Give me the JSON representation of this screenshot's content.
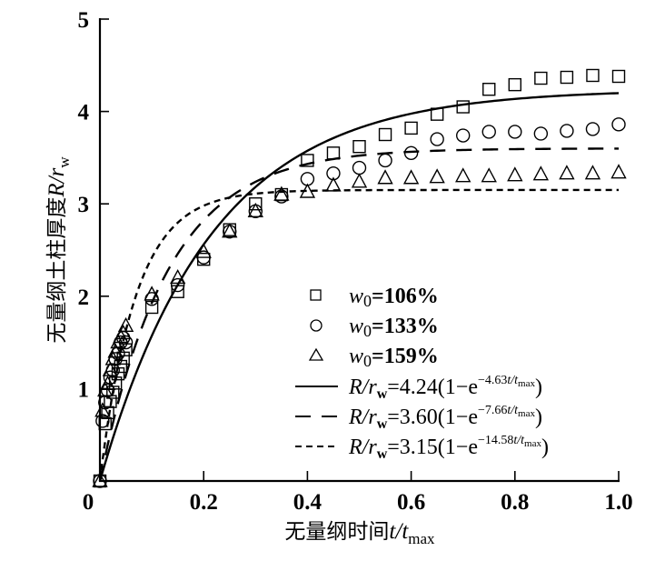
{
  "chart_data": {
    "type": "scatter",
    "title": "",
    "xlabel": {
      "prefix": "无量纲时间",
      "var": "t",
      "slash": "/",
      "var2": "t",
      "sub": "max"
    },
    "ylabel": {
      "prefix": "无量纲土柱厚度",
      "var": "R",
      "slash": "/",
      "var2": "r",
      "sub": "w"
    },
    "xlim": [
      0,
      1.0
    ],
    "ylim": [
      0,
      5
    ],
    "grid": false,
    "legend_position": "center-right",
    "x_ticks": [
      0,
      0.2,
      0.4,
      0.6,
      0.8,
      1.0
    ],
    "x_tick_labels": [
      "0",
      "0.2",
      "0.4",
      "0.6",
      "0.8",
      "1.0"
    ],
    "y_ticks": [
      1,
      2,
      3,
      4,
      5
    ],
    "y_tick_labels": [
      "1",
      "2",
      "3",
      "4",
      "5"
    ],
    "series": [
      {
        "name": "w0=106%",
        "legend": {
          "var": "w",
          "sub": "0",
          "text": "=106%"
        },
        "marker": "square",
        "x": [
          0.0,
          0.01,
          0.015,
          0.02,
          0.025,
          0.03,
          0.035,
          0.04,
          0.045,
          0.05,
          0.1,
          0.15,
          0.2,
          0.25,
          0.3,
          0.35,
          0.4,
          0.45,
          0.5,
          0.55,
          0.6,
          0.65,
          0.7,
          0.75,
          0.8,
          0.85,
          0.9,
          0.95,
          1.0
        ],
        "y": [
          0.0,
          0.62,
          0.74,
          0.86,
          0.96,
          1.06,
          1.16,
          1.24,
          1.33,
          1.42,
          1.88,
          2.05,
          2.4,
          2.72,
          3.0,
          3.1,
          3.47,
          3.55,
          3.62,
          3.75,
          3.82,
          3.97,
          4.05,
          4.24,
          4.29,
          4.36,
          4.37,
          4.39,
          4.38
        ]
      },
      {
        "name": "w0=133%",
        "legend": {
          "var": "w",
          "sub": "0",
          "text": "=133%"
        },
        "marker": "circle",
        "x": [
          0.0,
          0.005,
          0.01,
          0.015,
          0.02,
          0.025,
          0.03,
          0.035,
          0.04,
          0.045,
          0.05,
          0.1,
          0.15,
          0.2,
          0.25,
          0.3,
          0.35,
          0.4,
          0.45,
          0.5,
          0.55,
          0.6,
          0.65,
          0.7,
          0.75,
          0.8,
          0.85,
          0.9,
          0.95,
          1.0
        ],
        "y": [
          0.0,
          0.65,
          0.85,
          0.98,
          1.12,
          1.2,
          1.32,
          1.38,
          1.5,
          1.55,
          1.5,
          1.97,
          2.12,
          2.42,
          2.7,
          2.92,
          3.08,
          3.27,
          3.33,
          3.39,
          3.47,
          3.55,
          3.7,
          3.74,
          3.78,
          3.78,
          3.76,
          3.79,
          3.81,
          3.86
        ]
      },
      {
        "name": "w0=159%",
        "legend": {
          "var": "w",
          "sub": "0",
          "text": "=159%"
        },
        "marker": "triangle",
        "x": [
          0.0,
          0.005,
          0.01,
          0.015,
          0.02,
          0.025,
          0.03,
          0.035,
          0.04,
          0.045,
          0.05,
          0.1,
          0.15,
          0.2,
          0.25,
          0.3,
          0.35,
          0.4,
          0.45,
          0.5,
          0.55,
          0.6,
          0.65,
          0.7,
          0.75,
          0.8,
          0.85,
          0.9,
          0.95,
          1.0
        ],
        "y": [
          0.0,
          0.76,
          0.98,
          1.05,
          1.2,
          1.32,
          1.4,
          1.5,
          1.56,
          1.6,
          1.68,
          2.02,
          2.2,
          2.48,
          2.7,
          2.92,
          3.1,
          3.13,
          3.2,
          3.24,
          3.28,
          3.28,
          3.29,
          3.3,
          3.3,
          3.31,
          3.32,
          3.33,
          3.33,
          3.34
        ]
      }
    ],
    "fits": [
      {
        "name": "fit-106",
        "style": "solid",
        "a": 4.24,
        "k": 4.63,
        "legend": {
          "lhs_var": "R",
          "slash": "/",
          "lhs_var2": "r",
          "lhs_sub": "w",
          "eq": "=4.24(1−e",
          "exp": "−4.63",
          "exp_var": "t",
          "exp_slash": "/",
          "exp_var2": "t",
          "exp_sub": "max",
          "close": ")"
        }
      },
      {
        "name": "fit-133",
        "style": "dashed",
        "a": 3.6,
        "k": 7.66,
        "legend": {
          "lhs_var": "R",
          "slash": "/",
          "lhs_var2": "r",
          "lhs_sub": "w",
          "eq": "=3.60(1−e",
          "exp": "−7.66",
          "exp_var": "t",
          "exp_slash": "/",
          "exp_var2": "t",
          "exp_sub": "max",
          "close": ")"
        }
      },
      {
        "name": "fit-159",
        "style": "short-dashed",
        "a": 3.15,
        "k": 14.58,
        "legend": {
          "lhs_var": "R",
          "slash": "/",
          "lhs_var2": "r",
          "lhs_sub": "w",
          "eq": "=3.15(1−e",
          "exp": "−14.58",
          "exp_var": "t",
          "exp_slash": "/",
          "exp_var2": "t",
          "exp_sub": "max",
          "close": ")"
        }
      }
    ],
    "colors": {
      "ink": "#000000",
      "background": "#ffffff"
    }
  }
}
